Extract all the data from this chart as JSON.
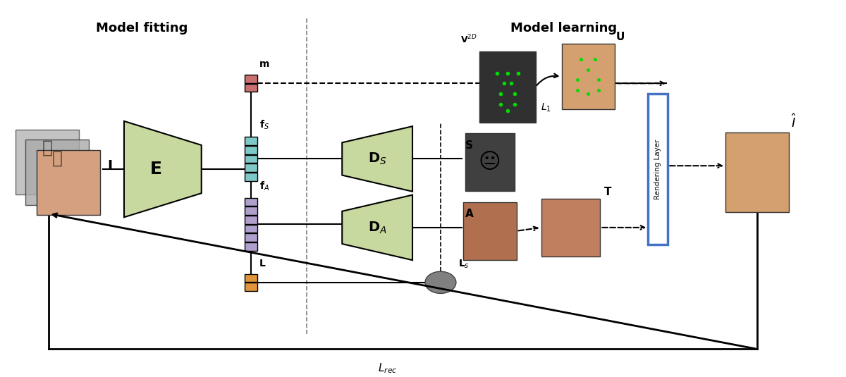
{
  "fig_width": 12.0,
  "fig_height": 5.35,
  "bg_color": "#f5f5f5",
  "encoder_color": "#c8d9a0",
  "decoder_color": "#c8d9a0",
  "fs_color": "#7ec8c8",
  "fa_color": "#b09fcc",
  "m_color": "#c87070",
  "l_color": "#e0953a",
  "rendering_box_color": "#4472c4",
  "title_fitting": "Model fitting",
  "title_learning": "Model learning",
  "label_E": "E",
  "label_DS": "D$_S$",
  "label_DA": "D$_A$",
  "label_fs": "f$_S$",
  "label_fa": "f$_A$",
  "label_m": "m",
  "label_L": "L",
  "label_S": "S",
  "label_A": "A",
  "label_T": "T",
  "label_U": "U",
  "label_V2D": "V$^{2D}$",
  "label_Ls": "L$_s$",
  "label_L1": "L$_1$",
  "label_Lrec": "L$_{rec}$",
  "label_I": "I",
  "label_Ihat": "$\\hat{I}$",
  "label_rendering": "Rendering Layer"
}
